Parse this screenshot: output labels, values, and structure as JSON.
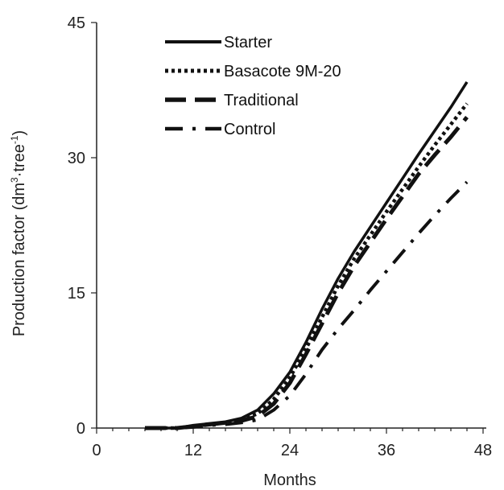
{
  "chart_data": {
    "type": "line",
    "title": "",
    "xlabel": "Months",
    "ylabel_main": "Production factor (dm",
    "ylabel_sup1": "3",
    "ylabel_mid": "·tree",
    "ylabel_sup2": "-1",
    "ylabel_end": ")",
    "xlim": [
      0,
      48
    ],
    "ylim": [
      0,
      45
    ],
    "x_ticks": [
      0,
      12,
      24,
      36,
      48
    ],
    "x_tick_labels": [
      "0",
      "12",
      "24",
      "36",
      "48"
    ],
    "y_ticks": [
      0,
      15,
      30,
      45
    ],
    "y_tick_labels": [
      "0",
      "15",
      "30",
      "45"
    ],
    "grid": false,
    "legend_position": "top-left",
    "series": [
      {
        "name": "Starter",
        "style": "solid",
        "x": [
          6,
          10,
          12,
          14,
          16,
          18,
          20,
          22,
          24,
          26,
          28,
          30,
          32,
          34,
          36,
          38,
          40,
          42,
          44,
          46
        ],
        "y": [
          0,
          0,
          0.3,
          0.5,
          0.7,
          1.1,
          2.0,
          3.8,
          6.2,
          9.5,
          13.2,
          16.6,
          19.6,
          22.3,
          25.0,
          27.7,
          30.4,
          33.0,
          35.6,
          38.4
        ]
      },
      {
        "name": "Basacote 9M-20",
        "style": "dotted",
        "x": [
          6,
          10,
          12,
          14,
          16,
          18,
          20,
          22,
          24,
          26,
          28,
          30,
          32,
          34,
          36,
          38,
          40,
          42,
          44,
          46
        ],
        "y": [
          0,
          0,
          0.2,
          0.4,
          0.6,
          0.9,
          1.6,
          3.2,
          5.6,
          8.8,
          12.3,
          15.8,
          18.8,
          21.4,
          24.0,
          26.5,
          29.0,
          31.4,
          33.7,
          36.0
        ]
      },
      {
        "name": "Traditional",
        "style": "long-dash",
        "x": [
          6,
          10,
          12,
          14,
          16,
          18,
          20,
          22,
          24,
          26,
          28,
          30,
          32,
          34,
          36,
          38,
          40,
          42,
          44,
          46
        ],
        "y": [
          0,
          0,
          0.2,
          0.4,
          0.6,
          0.8,
          1.3,
          2.7,
          5.0,
          8.2,
          11.6,
          15.0,
          18.0,
          20.6,
          23.2,
          25.7,
          28.2,
          30.3,
          32.3,
          34.5
        ]
      },
      {
        "name": "Control",
        "style": "dash-dot",
        "x": [
          6,
          10,
          12,
          14,
          16,
          18,
          20,
          22,
          24,
          26,
          28,
          30,
          32,
          34,
          36,
          38,
          40,
          42,
          44,
          46
        ],
        "y": [
          0,
          0,
          0.1,
          0.3,
          0.4,
          0.6,
          0.9,
          2.0,
          3.6,
          6.0,
          8.7,
          11.0,
          13.1,
          15.3,
          17.4,
          19.5,
          21.6,
          23.6,
          25.5,
          27.3
        ]
      }
    ]
  }
}
